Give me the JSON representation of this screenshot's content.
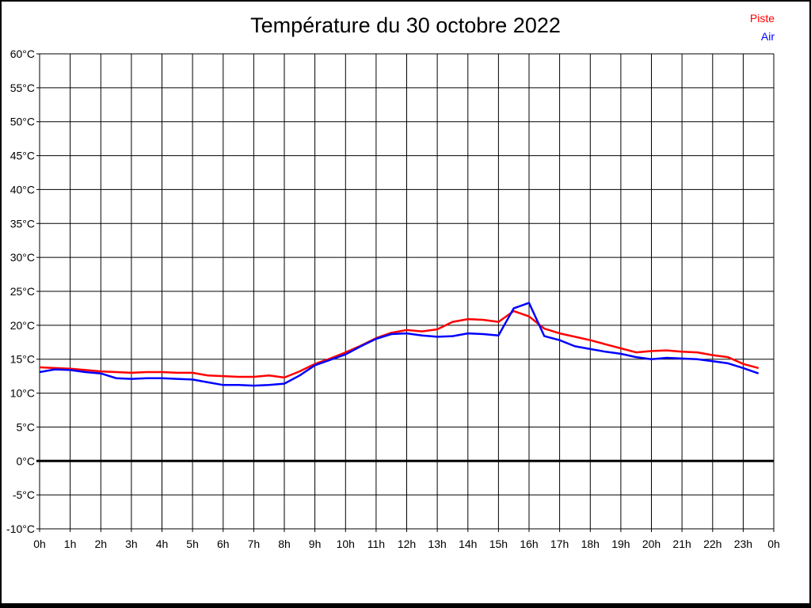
{
  "title": "Température du 30 octobre 2022",
  "legend": {
    "items": [
      {
        "label": "Piste",
        "color": "#ff0000"
      },
      {
        "label": "Air",
        "color": "#0000ff"
      }
    ]
  },
  "chart_data": {
    "type": "line",
    "title": "Température du 30 octobre 2022",
    "xlabel": "",
    "ylabel": "",
    "ylim": [
      -10,
      60
    ],
    "ytick_step": 5,
    "xlim_hours": [
      0,
      24
    ],
    "grid": true,
    "legend_position": "top-right",
    "zero_line_thick": true,
    "xtick_labels": [
      "0h",
      "1h",
      "2h",
      "3h",
      "4h",
      "5h",
      "6h",
      "7h",
      "8h",
      "9h",
      "10h",
      "11h",
      "12h",
      "13h",
      "14h",
      "15h",
      "16h",
      "17h",
      "18h",
      "19h",
      "20h",
      "21h",
      "22h",
      "23h",
      "0h"
    ],
    "ytick_labels": [
      "60°C",
      "55°C",
      "50°C",
      "45°C",
      "40°C",
      "35°C",
      "30°C",
      "25°C",
      "20°C",
      "15°C",
      "10°C",
      "5°C",
      "0°C",
      "-5°C",
      "-10°C"
    ],
    "x": [
      0,
      0.5,
      1,
      1.5,
      2,
      2.5,
      3,
      3.5,
      4,
      4.5,
      5,
      5.5,
      6,
      6.5,
      7,
      7.5,
      8,
      8.5,
      9,
      9.5,
      10,
      10.5,
      11,
      11.5,
      12,
      12.5,
      13,
      13.5,
      14,
      14.5,
      15,
      15.5,
      16,
      16.5,
      17,
      17.5,
      18,
      18.5,
      19,
      19.5,
      20,
      20.5,
      21,
      21.5,
      22,
      22.5,
      23,
      23.5
    ],
    "series": [
      {
        "name": "Piste",
        "color": "#ff0000",
        "values": [
          13.8,
          13.7,
          13.6,
          13.4,
          13.2,
          13.1,
          13.0,
          13.1,
          13.1,
          13.0,
          13.0,
          12.6,
          12.5,
          12.4,
          12.4,
          12.6,
          12.3,
          13.2,
          14.3,
          15.1,
          16.0,
          17.0,
          18.1,
          18.9,
          19.3,
          19.1,
          19.4,
          20.5,
          20.9,
          20.8,
          20.5,
          22.1,
          21.3,
          19.5,
          18.8,
          18.3,
          17.8,
          17.2,
          16.6,
          16.0,
          16.2,
          16.3,
          16.1,
          16.0,
          15.6,
          15.3,
          14.3,
          13.7
        ]
      },
      {
        "name": "Air",
        "color": "#0000ff",
        "values": [
          13.1,
          13.5,
          13.4,
          13.1,
          12.9,
          12.2,
          12.1,
          12.2,
          12.2,
          12.1,
          12.0,
          11.6,
          11.2,
          11.2,
          11.1,
          11.2,
          11.4,
          12.6,
          14.1,
          14.9,
          15.7,
          16.9,
          18.0,
          18.7,
          18.8,
          18.5,
          18.3,
          18.4,
          18.8,
          18.7,
          18.5,
          22.5,
          23.3,
          18.4,
          17.8,
          16.9,
          16.5,
          16.1,
          15.8,
          15.3,
          15.0,
          15.2,
          15.1,
          15.0,
          14.7,
          14.4,
          13.7,
          12.9
        ]
      }
    ]
  }
}
